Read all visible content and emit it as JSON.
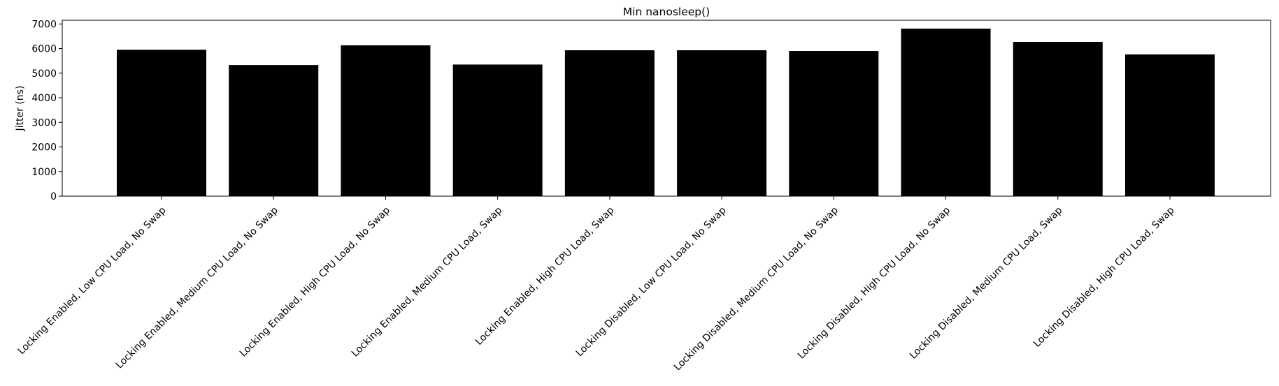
{
  "chart_data": {
    "type": "bar",
    "title": "Min nanosleep()",
    "xlabel": "",
    "ylabel": "Jitter (ns)",
    "ylim": [
      0,
      7150
    ],
    "yticks": [
      0,
      1000,
      2000,
      3000,
      4000,
      5000,
      6000,
      7000
    ],
    "grid": false,
    "bar_color": "#000000",
    "categories": [
      "Locking Enabled, Low CPU Load, No Swap",
      "Locking Enabled, Medium CPU Load, No Swap",
      "Locking Enabled, High CPU Load, No Swap",
      "Locking Enabled, Medium CPU Load, Swap",
      "Locking Enabled, High CPU Load, Swap",
      "Locking Disabled, Low CPU Load, No Swap",
      "Locking Disabled, Medium CPU Load, No Swap",
      "Locking Disabled, High CPU Load, No Swap",
      "Locking Disabled, Medium CPU Load, Swap",
      "Locking Disabled, High CPU Load, Swap"
    ],
    "values": [
      5950,
      5330,
      6130,
      5350,
      5930,
      5930,
      5900,
      6810,
      6270,
      5760
    ]
  }
}
